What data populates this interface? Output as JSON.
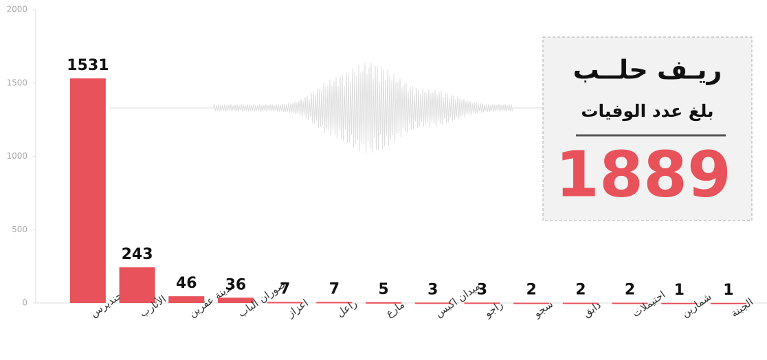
{
  "chart_data": {
    "type": "bar",
    "categories": [
      "جنديرس",
      "الأثارب",
      "مدينة عفرين",
      "صوران الباب",
      "اعزاز",
      "راعل",
      "مارع",
      "ميدان اكبس",
      "راجو",
      "سجو",
      "دابق",
      "احتيملات",
      "شمارين",
      "الجبنة"
    ],
    "values": [
      1531,
      243,
      46,
      36,
      7,
      7,
      5,
      3,
      3,
      2,
      2,
      2,
      1,
      1
    ],
    "color": "#e8525a",
    "ylim": [
      0,
      2000
    ],
    "yticks": [
      0,
      500,
      1000,
      1500,
      2000
    ],
    "box": {
      "title": "ريـف حلــب",
      "subtitle": "بلغ عدد الوفيات",
      "total": 1889
    }
  }
}
